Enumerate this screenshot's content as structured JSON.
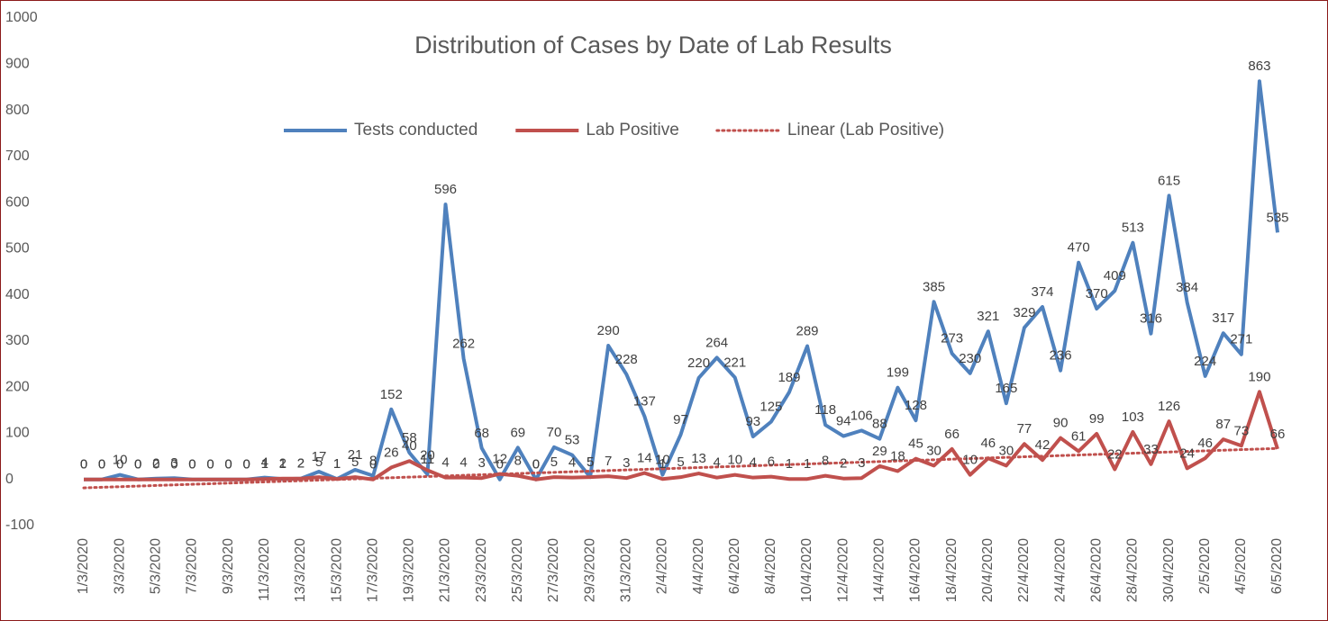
{
  "chart_data": {
    "type": "line",
    "title": "Distribution of Cases by Date of Lab Results",
    "categories": [
      "1/3/2020",
      null,
      "3/3/2020",
      null,
      "5/3/2020",
      null,
      "7/3/2020",
      null,
      "9/3/2020",
      null,
      "11/3/2020",
      null,
      "13/3/2020",
      null,
      "15/3/2020",
      null,
      "17/3/2020",
      null,
      "19/3/2020",
      null,
      "21/3/2020",
      null,
      "23/3/2020",
      null,
      "25/3/2020",
      null,
      "27/3/2020",
      null,
      "29/3/2020",
      null,
      "31/3/2020",
      null,
      "2/4/2020",
      null,
      "4/4/2020",
      null,
      "6/4/2020",
      null,
      "8/4/2020",
      null,
      "10/4/2020",
      null,
      "12/4/2020",
      null,
      "14/4/2020",
      null,
      "16/4/2020",
      null,
      "18/4/2020",
      null,
      "20/4/2020",
      null,
      "22/4/2020",
      null,
      "24/4/2020",
      null,
      "26/4/2020",
      null,
      "28/4/2020",
      null,
      "30/4/2020",
      null,
      "2/5/2020",
      null,
      "4/5/2020",
      null,
      "6/5/2020"
    ],
    "series": [
      {
        "name": "Tests conducted",
        "color": "#4f81bd",
        "values": [
          0,
          0,
          10,
          0,
          2,
          3,
          0,
          0,
          0,
          0,
          4,
          1,
          2,
          17,
          1,
          21,
          8,
          152,
          58,
          11,
          596,
          262,
          68,
          0,
          69,
          0,
          70,
          53,
          5,
          290,
          228,
          137,
          10,
          97,
          220,
          264,
          221,
          93,
          125,
          189,
          289,
          118,
          94,
          106,
          88,
          199,
          128,
          385,
          273,
          230,
          321,
          165,
          329,
          374,
          236,
          470,
          370,
          409,
          513,
          316,
          615,
          384,
          224,
          317,
          271,
          863,
          535
        ]
      },
      {
        "name": "Lab Positive",
        "color": "#c0504d",
        "values": [
          0,
          0,
          0,
          0,
          0,
          0,
          0,
          0,
          0,
          0,
          1,
          2,
          2,
          5,
          1,
          5,
          0,
          26,
          40,
          20,
          4,
          4,
          3,
          12,
          8,
          0,
          5,
          4,
          5,
          7,
          3,
          14,
          1,
          5,
          13,
          4,
          10,
          4,
          6,
          1,
          1,
          8,
          2,
          3,
          29,
          18,
          45,
          30,
          66,
          10,
          46,
          30,
          77,
          42,
          90,
          61,
          99,
          22,
          103,
          33,
          126,
          24,
          46,
          87,
          73,
          190,
          66
        ],
        "trendline": {
          "name": "Linear (Lab Positive)",
          "color": "#c0504d",
          "style": "dotted"
        }
      }
    ],
    "ylim": [
      -100,
      1000
    ],
    "yticks": [
      -100,
      0,
      100,
      200,
      300,
      400,
      500,
      600,
      700,
      800,
      900,
      1000
    ],
    "data_labels": true,
    "grid": false,
    "legend": "top"
  }
}
